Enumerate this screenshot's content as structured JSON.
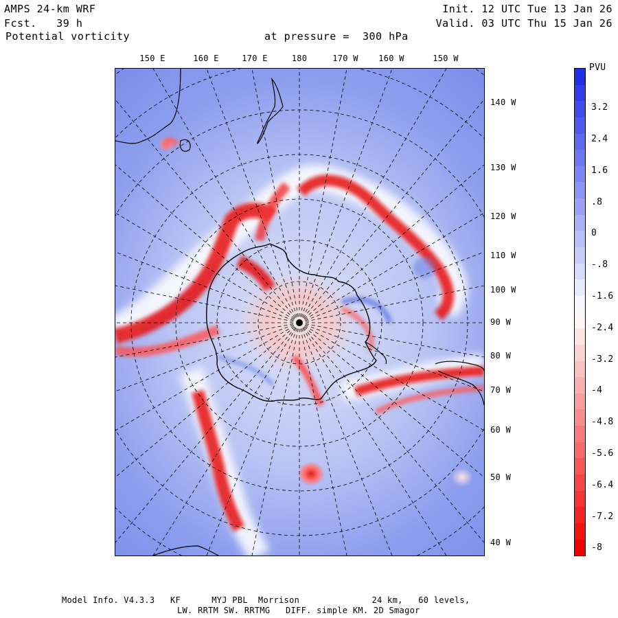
{
  "header": {
    "model": "AMPS 24-km WRF",
    "forecast": "Fcst.   39 h",
    "field": "Potential vorticity",
    "level": "at pressure =  300 hPa",
    "init": "Init. 12 UTC Tue 13 Jan 26",
    "valid": "Valid. 03 UTC Thu 15 Jan 26"
  },
  "longitude_labels_top": [
    "150 E",
    "160 E",
    "170 E",
    "180",
    "170 W",
    "160 W",
    "150 W"
  ],
  "longitude_labels_right": [
    "140 W",
    "130 W",
    "120 W",
    "110 W",
    "100 W",
    "90 W",
    "80 W",
    "70 W",
    "60 W",
    "50 W",
    "40 W"
  ],
  "colorbar": {
    "title": "PVU",
    "tick_labels": [
      "3.2",
      "2.4",
      "1.6",
      ".8",
      "0",
      "-.8",
      "-1.6",
      "-2.4",
      "-3.2",
      "-4",
      "-4.8",
      "-5.6",
      "-6.4",
      "-7.2",
      "-8"
    ],
    "top_color": "#2030e8",
    "mid_color": "#ffffff",
    "bottom_color": "#f00000"
  },
  "footer": {
    "line1": "Model Info. V4.3.3   KF      MYJ PBL  Morrison              24 km,   60 levels,",
    "line2": "LW. RRTM SW. RRTMG   DIFF. simple KM. 2D Smagor"
  }
}
